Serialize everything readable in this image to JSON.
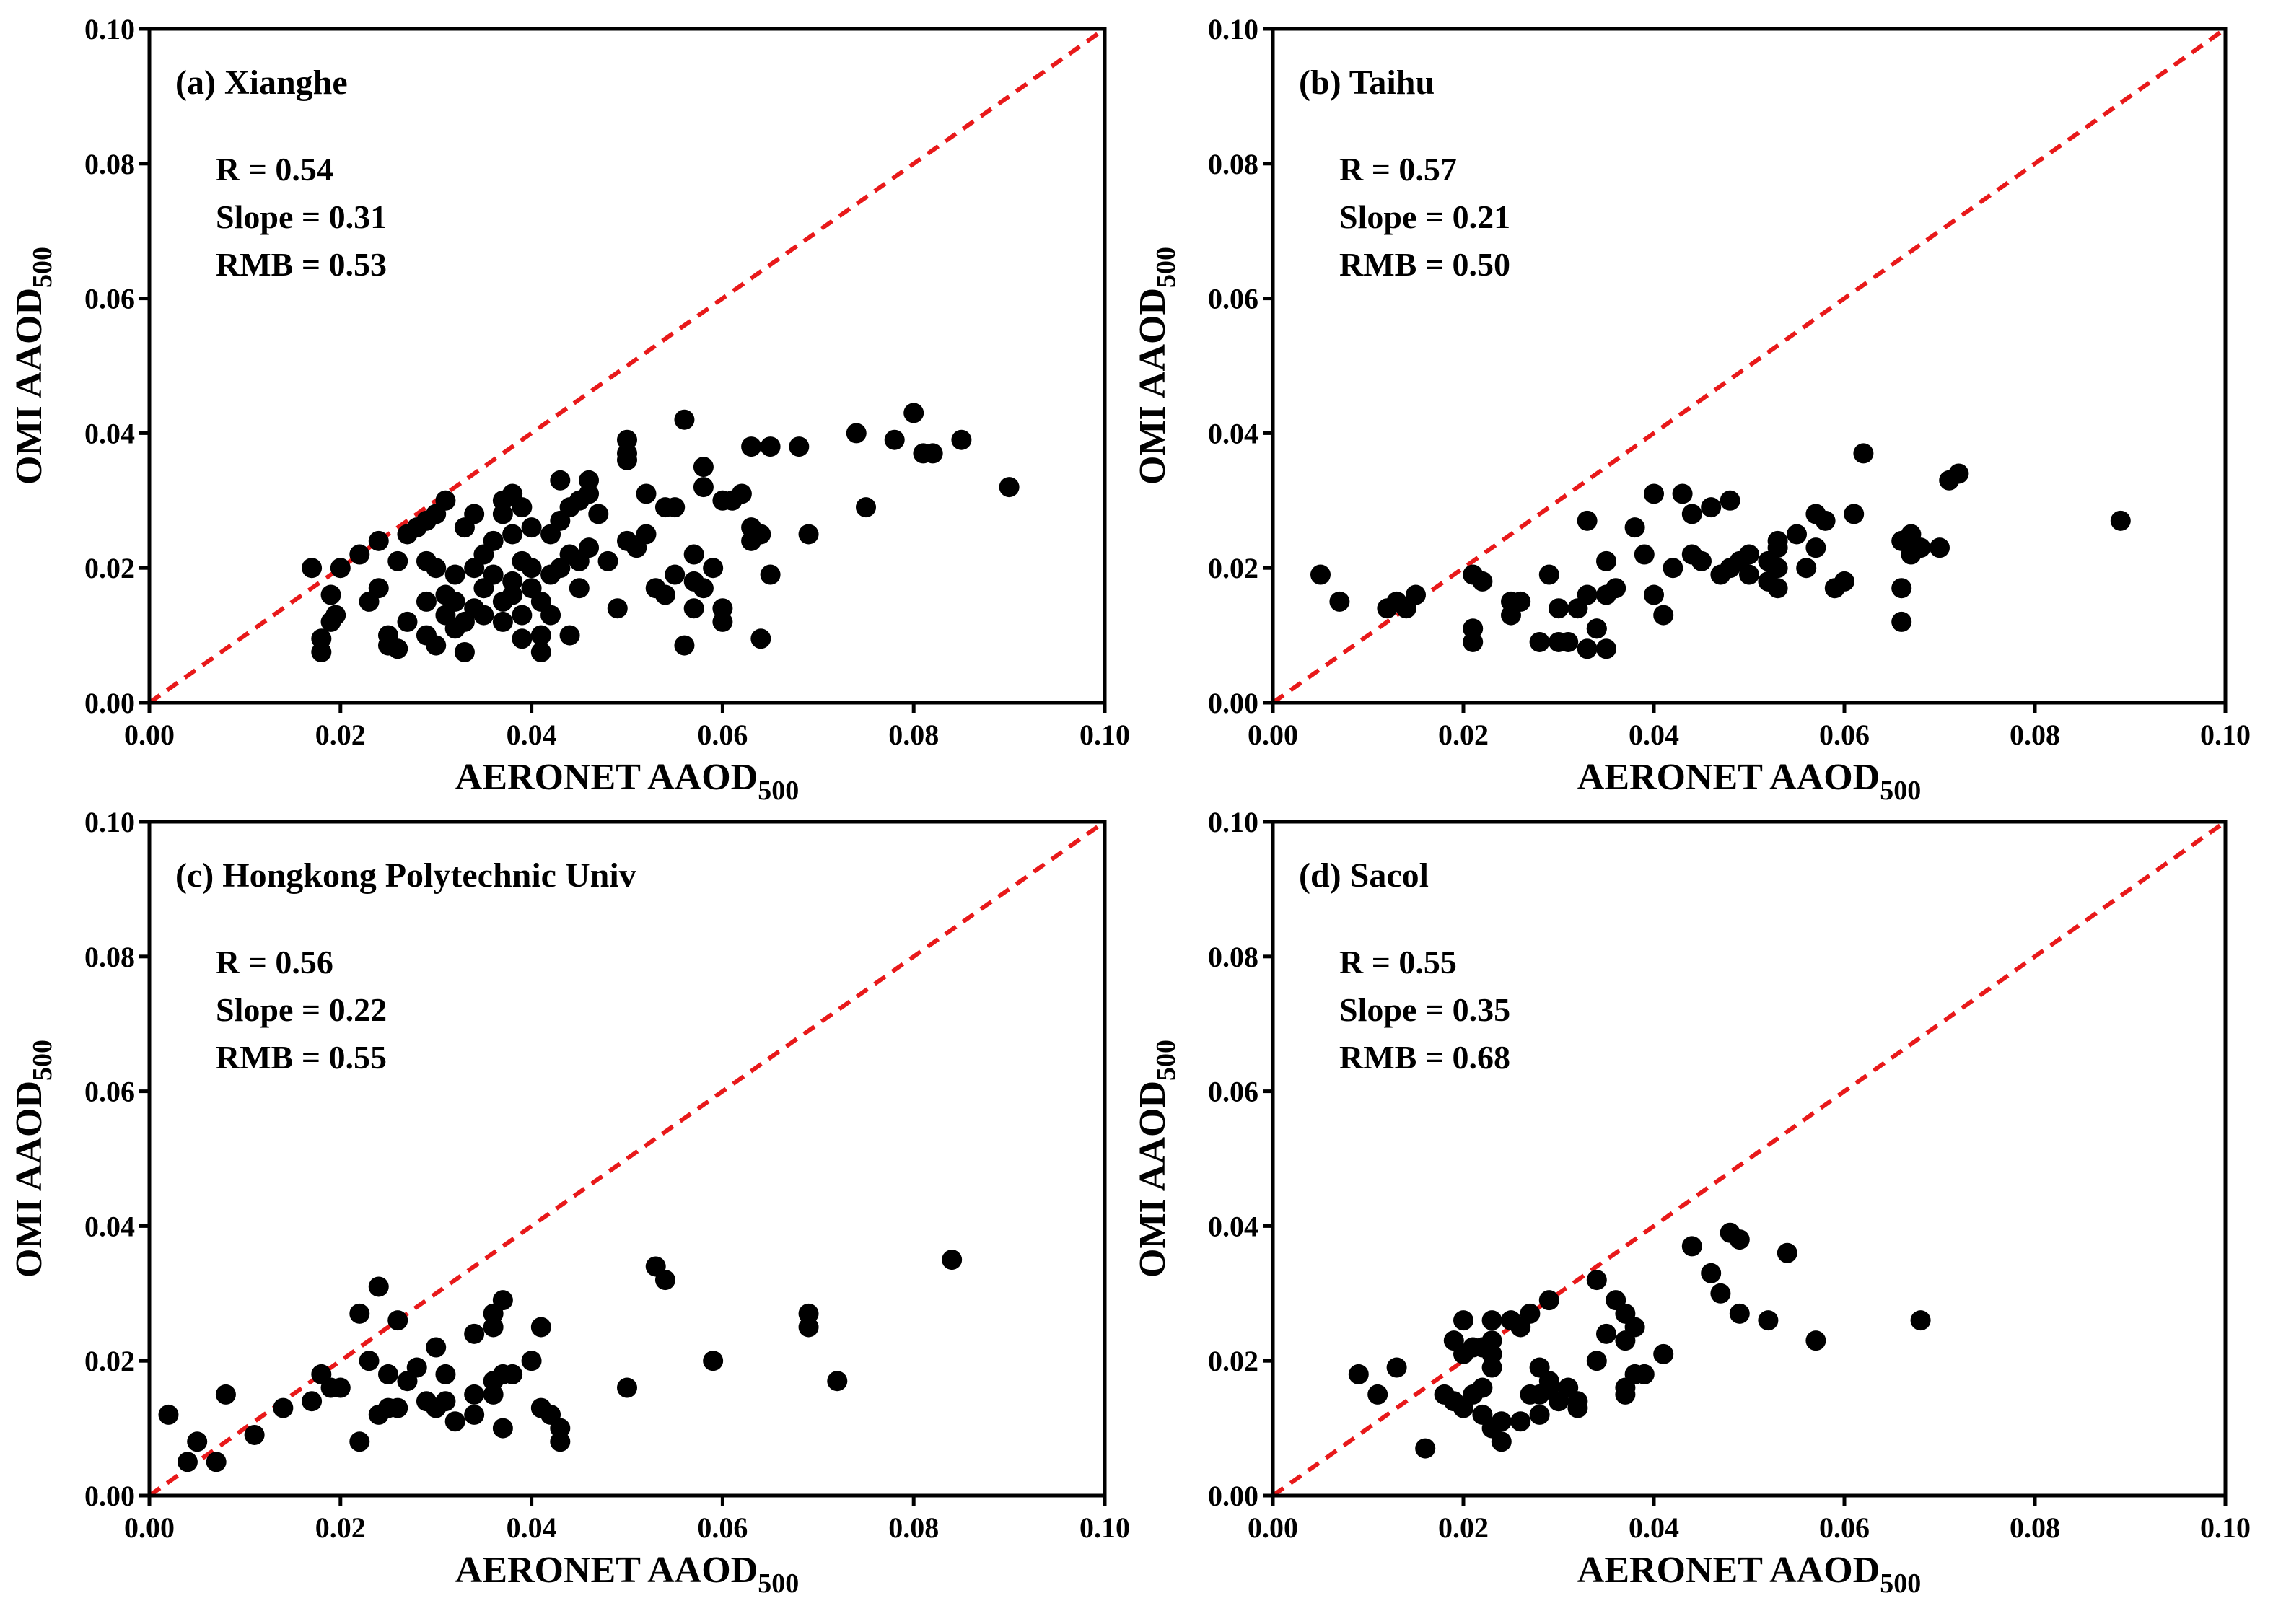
{
  "chart_data": [
    {
      "type": "scatter",
      "title": "(a) Xianghe",
      "annotations": [
        "R = 0.54",
        "Slope = 0.31",
        "RMB = 0.53"
      ],
      "x_label": "AERONET AAOD",
      "x_label_sub": "500",
      "y_label": "OMI AAOD",
      "y_label_sub": "500",
      "color": "#000000",
      "reference_line_color": "#e8191a",
      "xlim": [
        0,
        0.1
      ],
      "ylim": [
        0,
        0.1
      ],
      "xticks": [
        {
          "value": 0,
          "label": "0.00"
        },
        {
          "value": 0.02,
          "label": "0.02"
        },
        {
          "value": 0.04,
          "label": "0.04"
        },
        {
          "value": 0.06,
          "label": "0.06"
        },
        {
          "value": 0.08,
          "label": "0.08"
        },
        {
          "value": 0.1,
          "label": "0.10"
        }
      ],
      "yticks": [
        {
          "value": 0,
          "label": "0.00"
        },
        {
          "value": 0.02,
          "label": "0.02"
        },
        {
          "value": 0.04,
          "label": "0.04"
        },
        {
          "value": 0.06,
          "label": "0.06"
        },
        {
          "value": 0.08,
          "label": "0.08"
        },
        {
          "value": 0.1,
          "label": "0.10"
        }
      ],
      "x": [
        0.017,
        0.018,
        0.018,
        0.019,
        0.019,
        0.0195,
        0.02,
        0.022,
        0.023,
        0.024,
        0.024,
        0.025,
        0.025,
        0.026,
        0.026,
        0.027,
        0.027,
        0.028,
        0.029,
        0.029,
        0.029,
        0.029,
        0.03,
        0.03,
        0.03,
        0.031,
        0.031,
        0.031,
        0.032,
        0.032,
        0.032,
        0.033,
        0.033,
        0.033,
        0.034,
        0.034,
        0.034,
        0.035,
        0.035,
        0.035,
        0.036,
        0.036,
        0.037,
        0.037,
        0.037,
        0.037,
        0.038,
        0.038,
        0.038,
        0.038,
        0.039,
        0.039,
        0.039,
        0.039,
        0.04,
        0.04,
        0.04,
        0.041,
        0.041,
        0.041,
        0.042,
        0.042,
        0.042,
        0.043,
        0.043,
        0.043,
        0.044,
        0.044,
        0.044,
        0.045,
        0.045,
        0.045,
        0.046,
        0.046,
        0.046,
        0.047,
        0.048,
        0.049,
        0.05,
        0.05,
        0.05,
        0.05,
        0.051,
        0.052,
        0.052,
        0.053,
        0.054,
        0.054,
        0.055,
        0.055,
        0.056,
        0.056,
        0.057,
        0.057,
        0.057,
        0.058,
        0.058,
        0.058,
        0.059,
        0.06,
        0.06,
        0.06,
        0.061,
        0.062,
        0.063,
        0.063,
        0.063,
        0.064,
        0.064,
        0.065,
        0.065,
        0.068,
        0.069,
        0.074,
        0.075,
        0.078,
        0.08,
        0.081,
        0.082,
        0.085,
        0.09
      ],
      "values": [
        0.02,
        0.0095,
        0.0075,
        0.016,
        0.012,
        0.013,
        0.02,
        0.022,
        0.015,
        0.024,
        0.017,
        0.01,
        0.0085,
        0.008,
        0.021,
        0.012,
        0.025,
        0.026,
        0.015,
        0.01,
        0.021,
        0.027,
        0.028,
        0.0085,
        0.02,
        0.03,
        0.016,
        0.013,
        0.015,
        0.011,
        0.019,
        0.0075,
        0.012,
        0.026,
        0.028,
        0.02,
        0.014,
        0.022,
        0.017,
        0.013,
        0.024,
        0.019,
        0.03,
        0.028,
        0.015,
        0.012,
        0.031,
        0.025,
        0.018,
        0.016,
        0.029,
        0.021,
        0.013,
        0.0095,
        0.026,
        0.017,
        0.02,
        0.0075,
        0.01,
        0.015,
        0.013,
        0.019,
        0.025,
        0.033,
        0.027,
        0.02,
        0.029,
        0.022,
        0.01,
        0.03,
        0.021,
        0.017,
        0.033,
        0.023,
        0.031,
        0.028,
        0.021,
        0.014,
        0.024,
        0.039,
        0.037,
        0.036,
        0.023,
        0.025,
        0.031,
        0.017,
        0.016,
        0.029,
        0.029,
        0.019,
        0.042,
        0.0085,
        0.014,
        0.018,
        0.022,
        0.032,
        0.035,
        0.017,
        0.02,
        0.014,
        0.012,
        0.03,
        0.03,
        0.031,
        0.024,
        0.038,
        0.026,
        0.0095,
        0.025,
        0.019,
        0.038,
        0.038,
        0.025,
        0.04,
        0.029,
        0.039,
        0.043,
        0.037,
        0.037,
        0.039,
        0.032
      ]
    },
    {
      "type": "scatter",
      "title": "(b) Taihu",
      "annotations": [
        "R = 0.57",
        "Slope = 0.21",
        "RMB = 0.50"
      ],
      "x_label": "AERONET AAOD",
      "x_label_sub": "500",
      "y_label": "OMI AAOD",
      "y_label_sub": "500",
      "color": "#000000",
      "reference_line_color": "#e8191a",
      "xlim": [
        0,
        0.1
      ],
      "ylim": [
        0,
        0.1
      ],
      "xticks": [
        {
          "value": 0,
          "label": "0.00"
        },
        {
          "value": 0.02,
          "label": "0.02"
        },
        {
          "value": 0.04,
          "label": "0.04"
        },
        {
          "value": 0.06,
          "label": "0.06"
        },
        {
          "value": 0.08,
          "label": "0.08"
        },
        {
          "value": 0.1,
          "label": "0.10"
        }
      ],
      "yticks": [
        {
          "value": 0,
          "label": "0.00"
        },
        {
          "value": 0.02,
          "label": "0.02"
        },
        {
          "value": 0.04,
          "label": "0.04"
        },
        {
          "value": 0.06,
          "label": "0.06"
        },
        {
          "value": 0.08,
          "label": "0.08"
        },
        {
          "value": 0.1,
          "label": "0.10"
        }
      ],
      "x": [
        0.005,
        0.007,
        0.012,
        0.013,
        0.014,
        0.015,
        0.021,
        0.021,
        0.021,
        0.022,
        0.025,
        0.025,
        0.026,
        0.028,
        0.029,
        0.03,
        0.03,
        0.031,
        0.032,
        0.033,
        0.033,
        0.033,
        0.034,
        0.034,
        0.035,
        0.035,
        0.035,
        0.036,
        0.038,
        0.039,
        0.04,
        0.04,
        0.041,
        0.042,
        0.043,
        0.044,
        0.044,
        0.045,
        0.046,
        0.047,
        0.048,
        0.048,
        0.049,
        0.05,
        0.05,
        0.052,
        0.052,
        0.053,
        0.053,
        0.053,
        0.053,
        0.055,
        0.056,
        0.057,
        0.057,
        0.058,
        0.059,
        0.06,
        0.061,
        0.062,
        0.066,
        0.066,
        0.066,
        0.067,
        0.067,
        0.068,
        0.07,
        0.071,
        0.072,
        0.089
      ],
      "values": [
        0.019,
        0.015,
        0.014,
        0.015,
        0.014,
        0.016,
        0.019,
        0.011,
        0.009,
        0.018,
        0.015,
        0.013,
        0.015,
        0.009,
        0.019,
        0.014,
        0.009,
        0.009,
        0.014,
        0.016,
        0.027,
        0.008,
        0.011,
        0.011,
        0.021,
        0.008,
        0.016,
        0.017,
        0.026,
        0.022,
        0.016,
        0.031,
        0.013,
        0.02,
        0.031,
        0.022,
        0.028,
        0.021,
        0.029,
        0.019,
        0.03,
        0.02,
        0.021,
        0.022,
        0.019,
        0.018,
        0.021,
        0.024,
        0.023,
        0.02,
        0.017,
        0.025,
        0.02,
        0.023,
        0.028,
        0.027,
        0.017,
        0.018,
        0.028,
        0.037,
        0.024,
        0.017,
        0.012,
        0.025,
        0.022,
        0.023,
        0.023,
        0.033,
        0.034,
        0.027
      ]
    },
    {
      "type": "scatter",
      "title": "(c) Hongkong Polytechnic Univ",
      "annotations": [
        "R = 0.56",
        "Slope = 0.22",
        "RMB = 0.55"
      ],
      "x_label": "AERONET AAOD",
      "x_label_sub": "500",
      "y_label": "OMI AAOD",
      "y_label_sub": "500",
      "color": "#000000",
      "reference_line_color": "#e8191a",
      "xlim": [
        0,
        0.1
      ],
      "ylim": [
        0,
        0.1
      ],
      "xticks": [
        {
          "value": 0,
          "label": "0.00"
        },
        {
          "value": 0.02,
          "label": "0.02"
        },
        {
          "value": 0.04,
          "label": "0.04"
        },
        {
          "value": 0.06,
          "label": "0.06"
        },
        {
          "value": 0.08,
          "label": "0.08"
        },
        {
          "value": 0.1,
          "label": "0.10"
        }
      ],
      "yticks": [
        {
          "value": 0,
          "label": "0.00"
        },
        {
          "value": 0.02,
          "label": "0.02"
        },
        {
          "value": 0.04,
          "label": "0.04"
        },
        {
          "value": 0.06,
          "label": "0.06"
        },
        {
          "value": 0.08,
          "label": "0.08"
        },
        {
          "value": 0.1,
          "label": "0.10"
        }
      ],
      "x": [
        0.002,
        0.004,
        0.005,
        0.007,
        0.008,
        0.011,
        0.014,
        0.017,
        0.018,
        0.019,
        0.02,
        0.022,
        0.022,
        0.023,
        0.024,
        0.024,
        0.025,
        0.025,
        0.026,
        0.026,
        0.027,
        0.028,
        0.029,
        0.03,
        0.03,
        0.031,
        0.031,
        0.032,
        0.034,
        0.034,
        0.034,
        0.036,
        0.036,
        0.036,
        0.036,
        0.037,
        0.037,
        0.037,
        0.038,
        0.04,
        0.041,
        0.041,
        0.042,
        0.043,
        0.043,
        0.05,
        0.053,
        0.054,
        0.059,
        0.069,
        0.069,
        0.072,
        0.084
      ],
      "values": [
        0.012,
        0.005,
        0.008,
        0.005,
        0.015,
        0.009,
        0.013,
        0.014,
        0.018,
        0.016,
        0.016,
        0.027,
        0.008,
        0.02,
        0.012,
        0.031,
        0.013,
        0.018,
        0.026,
        0.013,
        0.017,
        0.019,
        0.014,
        0.022,
        0.013,
        0.014,
        0.018,
        0.011,
        0.024,
        0.015,
        0.012,
        0.025,
        0.027,
        0.015,
        0.017,
        0.01,
        0.018,
        0.029,
        0.018,
        0.02,
        0.025,
        0.013,
        0.012,
        0.01,
        0.008,
        0.016,
        0.034,
        0.032,
        0.02,
        0.027,
        0.025,
        0.017,
        0.035
      ]
    },
    {
      "type": "scatter",
      "title": "(d) Sacol",
      "annotations": [
        "R = 0.55",
        "Slope = 0.35",
        "RMB = 0.68"
      ],
      "x_label": "AERONET AAOD",
      "x_label_sub": "500",
      "y_label": "OMI AAOD",
      "y_label_sub": "500",
      "color": "#000000",
      "reference_line_color": "#e8191a",
      "xlim": [
        0,
        0.1
      ],
      "ylim": [
        0,
        0.1
      ],
      "xticks": [
        {
          "value": 0,
          "label": "0.00"
        },
        {
          "value": 0.02,
          "label": "0.02"
        },
        {
          "value": 0.04,
          "label": "0.04"
        },
        {
          "value": 0.06,
          "label": "0.06"
        },
        {
          "value": 0.08,
          "label": "0.08"
        },
        {
          "value": 0.1,
          "label": "0.10"
        }
      ],
      "yticks": [
        {
          "value": 0,
          "label": "0.00"
        },
        {
          "value": 0.02,
          "label": "0.02"
        },
        {
          "value": 0.04,
          "label": "0.04"
        },
        {
          "value": 0.06,
          "label": "0.06"
        },
        {
          "value": 0.08,
          "label": "0.08"
        },
        {
          "value": 0.1,
          "label": "0.10"
        }
      ],
      "x": [
        0.009,
        0.011,
        0.013,
        0.016,
        0.018,
        0.019,
        0.019,
        0.02,
        0.02,
        0.02,
        0.021,
        0.021,
        0.022,
        0.022,
        0.022,
        0.023,
        0.023,
        0.023,
        0.023,
        0.023,
        0.024,
        0.024,
        0.025,
        0.026,
        0.026,
        0.027,
        0.027,
        0.028,
        0.028,
        0.028,
        0.029,
        0.029,
        0.029,
        0.03,
        0.031,
        0.032,
        0.032,
        0.034,
        0.034,
        0.035,
        0.036,
        0.037,
        0.037,
        0.037,
        0.037,
        0.038,
        0.038,
        0.039,
        0.041,
        0.044,
        0.046,
        0.047,
        0.048,
        0.049,
        0.049,
        0.052,
        0.054,
        0.057,
        0.068
      ],
      "values": [
        0.018,
        0.015,
        0.019,
        0.007,
        0.015,
        0.023,
        0.014,
        0.013,
        0.026,
        0.021,
        0.015,
        0.022,
        0.022,
        0.012,
        0.016,
        0.026,
        0.01,
        0.019,
        0.021,
        0.023,
        0.011,
        0.008,
        0.026,
        0.011,
        0.025,
        0.027,
        0.015,
        0.012,
        0.019,
        0.015,
        0.029,
        0.017,
        0.016,
        0.014,
        0.016,
        0.014,
        0.013,
        0.032,
        0.02,
        0.024,
        0.029,
        0.027,
        0.023,
        0.015,
        0.016,
        0.025,
        0.018,
        0.018,
        0.021,
        0.037,
        0.033,
        0.03,
        0.039,
        0.038,
        0.027,
        0.026,
        0.036,
        0.023,
        0.026
      ]
    }
  ]
}
